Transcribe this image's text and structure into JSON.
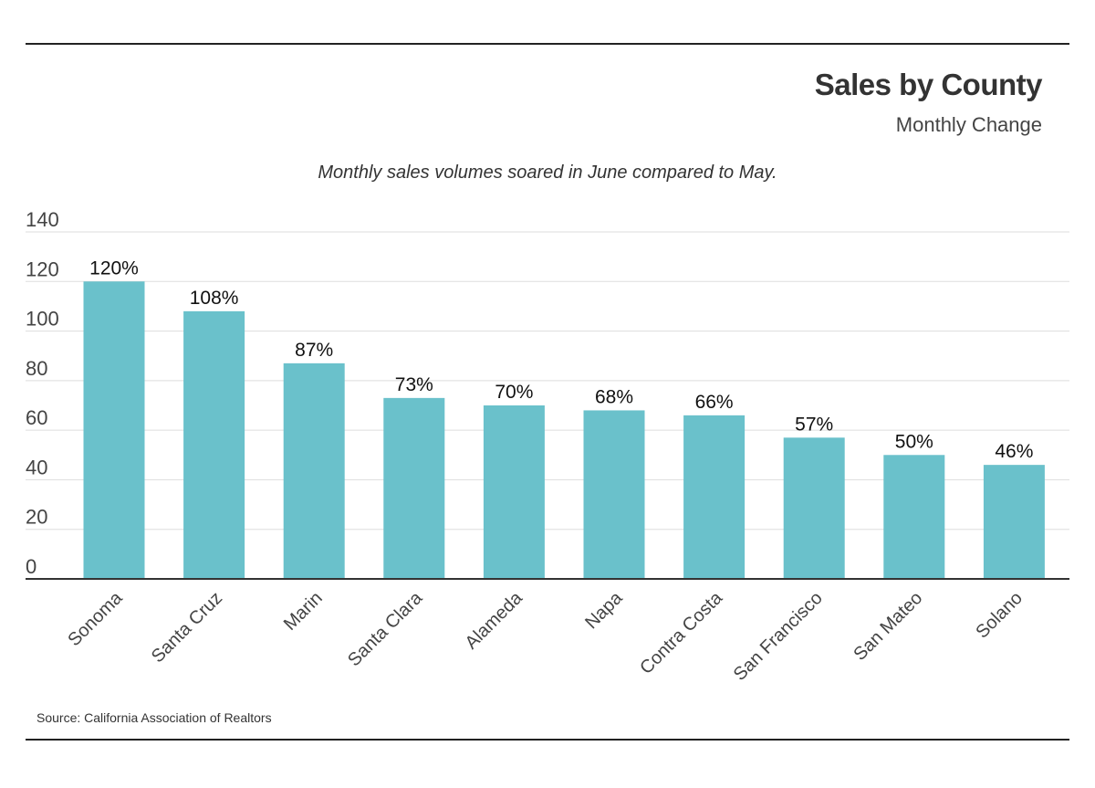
{
  "header": {
    "title": "Sales by County",
    "subtitle": "Monthly Change",
    "caption": "Monthly sales volumes soared in June compared to May."
  },
  "footer": {
    "source": "Source:  California Association of Realtors"
  },
  "chart_data": {
    "type": "bar",
    "categories": [
      "Sonoma",
      "Santa Cruz",
      "Marin",
      "Santa Clara",
      "Alameda",
      "Napa",
      "Contra Costa",
      "San Francisco",
      "San Mateo",
      "Solano"
    ],
    "values": [
      120,
      108,
      87,
      73,
      70,
      68,
      66,
      57,
      50,
      46
    ],
    "data_labels": [
      "120%",
      "108%",
      "87%",
      "73%",
      "70%",
      "68%",
      "66%",
      "57%",
      "50%",
      "46%"
    ],
    "yticks": [
      0,
      20,
      40,
      60,
      80,
      100,
      120,
      140
    ],
    "ylim": [
      0,
      140
    ],
    "grid": true,
    "legend": "none",
    "colors": {
      "bar": "#6ac1cb",
      "grid": "#dddddd",
      "axis": "#333333"
    }
  }
}
